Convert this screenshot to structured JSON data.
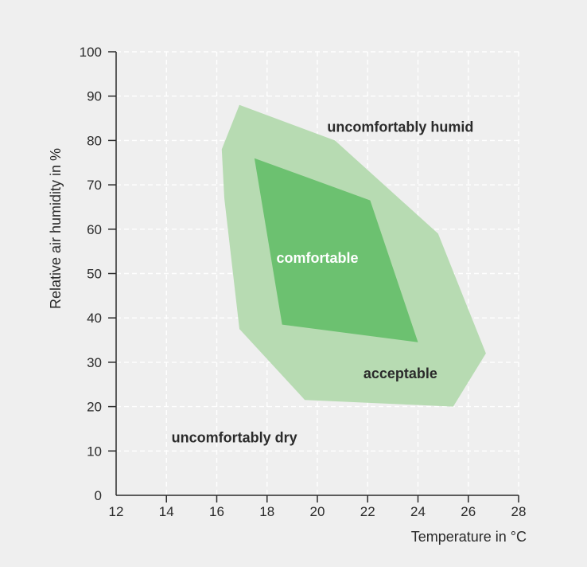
{
  "chart_data": {
    "type": "area",
    "xlabel": "Temperature in °C",
    "ylabel": "Relative air humidity in %",
    "xlim": [
      12,
      28
    ],
    "ylim": [
      0,
      100
    ],
    "xticks": [
      12,
      14,
      16,
      18,
      20,
      22,
      24,
      26,
      28
    ],
    "yticks": [
      0,
      10,
      20,
      30,
      40,
      50,
      60,
      70,
      80,
      90,
      100
    ],
    "grid": true,
    "colors": {
      "background": "#efefef",
      "acceptable": "#b7dbb2",
      "comfortable": "#6cc170",
      "grid": "#ffffff",
      "axis": "#2a2a2a"
    },
    "regions": [
      {
        "name": "acceptable",
        "points": [
          [
            16.9,
            88
          ],
          [
            20.7,
            80
          ],
          [
            24.8,
            59
          ],
          [
            26.7,
            32
          ],
          [
            25.4,
            20
          ],
          [
            19.5,
            21.5
          ],
          [
            16.9,
            37.5
          ],
          [
            16.3,
            67
          ],
          [
            16.2,
            78
          ]
        ]
      },
      {
        "name": "comfortable",
        "points": [
          [
            17.5,
            76
          ],
          [
            22.1,
            66.5
          ],
          [
            24.0,
            34.5
          ],
          [
            18.6,
            38.5
          ]
        ]
      }
    ],
    "annotations": [
      {
        "text": "uncomfortably humid",
        "x": 23.3,
        "y": 83
      },
      {
        "text": "comfortable",
        "x": 20.0,
        "y": 53.5
      },
      {
        "text": "acceptable",
        "x": 23.3,
        "y": 27.5
      },
      {
        "text": "uncomfortably dry",
        "x": 16.7,
        "y": 13
      }
    ]
  }
}
